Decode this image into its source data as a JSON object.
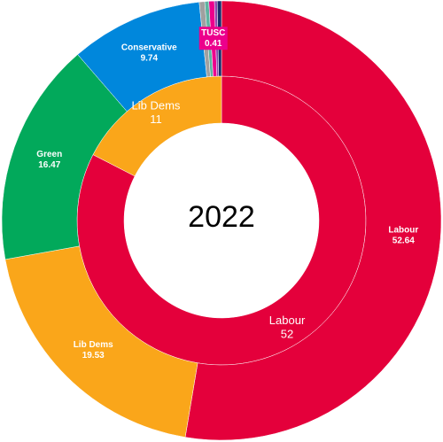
{
  "chart_data": {
    "type": "sunburst",
    "center_label": "2022",
    "rings": [
      {
        "categories": [
          "Labour",
          "Lib Dems"
        ],
        "values": [
          52,
          11
        ],
        "colors": [
          "#e4003b",
          "#faa61a"
        ]
      },
      {
        "categories": [
          "Labour",
          "Lib Dems",
          "Green",
          "Conservative",
          null,
          null,
          "TUSC",
          null,
          null
        ],
        "values": [
          52.64,
          19.53,
          16.47,
          9.74,
          0.4,
          0.3,
          0.41,
          0.2,
          0.31
        ],
        "colors": [
          "#e4003b",
          "#faa61a",
          "#02a95b",
          "#0087dc",
          "#a0a0a0",
          "#5fb3a1",
          "#ec008c",
          "#8e44ad",
          "#1a2b6b"
        ]
      }
    ]
  }
}
